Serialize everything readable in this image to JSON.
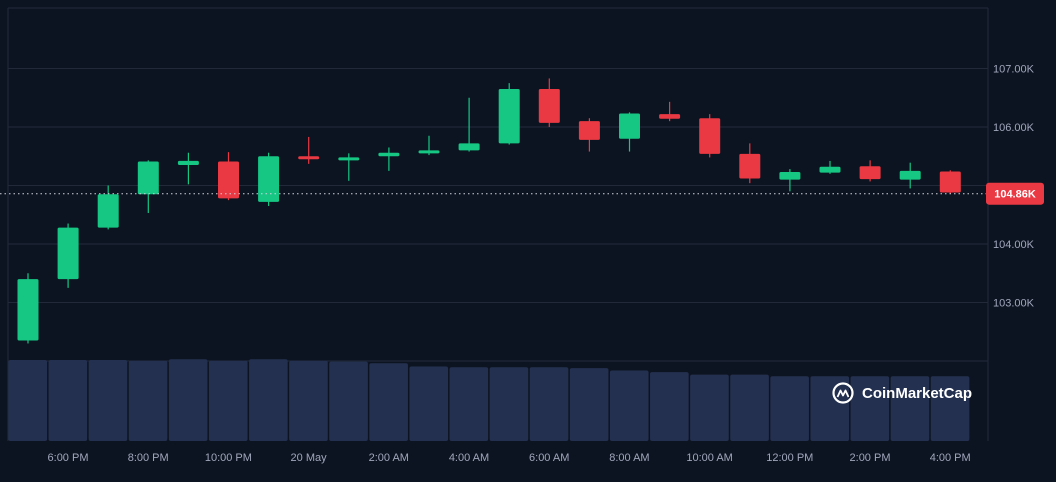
{
  "colors": {
    "background": "#0d1421",
    "grid": "#222a3a",
    "up": "#16c784",
    "down": "#ea3943",
    "volume": "#243050",
    "axis_text": "#a1a7bb",
    "price_tag": "#ea3943"
  },
  "brand": {
    "name": "CoinMarketCap",
    "icon": "coinmarketcap-logo-icon"
  },
  "current_price": {
    "value": 104860,
    "label": "104.86K"
  },
  "chart_data": {
    "type": "candlestick",
    "title": "",
    "xlabel": "",
    "ylabel": "",
    "ylim": [
      102000,
      108000
    ],
    "y_ticks": [
      {
        "value": 103000,
        "label": "103.00K"
      },
      {
        "value": 104000,
        "label": "104.00K"
      },
      {
        "value": 106000,
        "label": "106.00K"
      },
      {
        "value": 107000,
        "label": "107.00K"
      }
    ],
    "x_tick_labels": [
      "6:00 PM",
      "8:00 PM",
      "10:00 PM",
      "20 May",
      "2:00 AM",
      "4:00 AM",
      "6:00 AM",
      "8:00 AM",
      "10:00 AM",
      "12:00 PM",
      "2:00 PM",
      "4:00 PM"
    ],
    "grid": true,
    "legend": "none",
    "candles": [
      {
        "open": 102350,
        "high": 103500,
        "low": 102300,
        "close": 103400
      },
      {
        "open": 103400,
        "high": 104350,
        "low": 103250,
        "close": 104280
      },
      {
        "open": 104280,
        "high": 105000,
        "low": 104250,
        "close": 104850
      },
      {
        "open": 104850,
        "high": 105430,
        "low": 104530,
        "close": 105410
      },
      {
        "open": 105350,
        "high": 105560,
        "low": 105020,
        "close": 105420
      },
      {
        "open": 105410,
        "high": 105570,
        "low": 104750,
        "close": 104780
      },
      {
        "open": 104720,
        "high": 105560,
        "low": 104650,
        "close": 105500
      },
      {
        "open": 105500,
        "high": 105830,
        "low": 105370,
        "close": 105460
      },
      {
        "open": 105450,
        "high": 105550,
        "low": 105080,
        "close": 105480
      },
      {
        "open": 105500,
        "high": 105650,
        "low": 105250,
        "close": 105560
      },
      {
        "open": 105550,
        "high": 105850,
        "low": 105520,
        "close": 105600
      },
      {
        "open": 105600,
        "high": 106500,
        "low": 105580,
        "close": 105720
      },
      {
        "open": 105720,
        "high": 106750,
        "low": 105700,
        "close": 106650
      },
      {
        "open": 106650,
        "high": 106830,
        "low": 106000,
        "close": 106070
      },
      {
        "open": 106100,
        "high": 106150,
        "low": 105580,
        "close": 105780
      },
      {
        "open": 105800,
        "high": 106250,
        "low": 105580,
        "close": 106230
      },
      {
        "open": 106220,
        "high": 106430,
        "low": 106100,
        "close": 106140
      },
      {
        "open": 106150,
        "high": 106220,
        "low": 105480,
        "close": 105540
      },
      {
        "open": 105540,
        "high": 105720,
        "low": 105040,
        "close": 105120
      },
      {
        "open": 105100,
        "high": 105280,
        "low": 104900,
        "close": 105230
      },
      {
        "open": 105220,
        "high": 105420,
        "low": 105200,
        "close": 105320
      },
      {
        "open": 105330,
        "high": 105430,
        "low": 105070,
        "close": 105110
      },
      {
        "open": 105100,
        "high": 105390,
        "low": 104950,
        "close": 105250
      },
      {
        "open": 105240,
        "high": 105260,
        "low": 104860,
        "close": 104880
      }
    ],
    "volume": [
      100,
      100,
      100,
      99,
      101,
      99,
      101,
      99,
      98,
      96,
      92,
      91,
      91,
      91,
      90,
      87,
      85,
      82,
      82,
      80,
      80,
      80,
      80,
      80
    ],
    "volume_axis_max": 100
  }
}
